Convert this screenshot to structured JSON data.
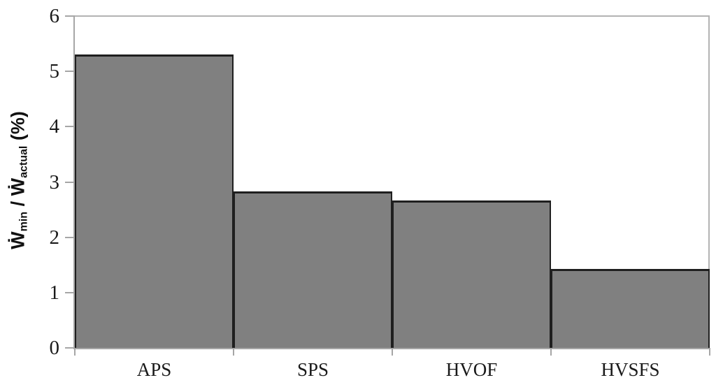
{
  "chart_data": {
    "type": "bar",
    "title": "",
    "xlabel": "",
    "ylabel": "Ẇmin / Ẇactual (%)",
    "ylabel_parts": {
      "w1": "Ẇ",
      "sub1": "min",
      "sep": " / ",
      "w2": "Ẇ",
      "sub2": "actual",
      "unit": " (%)"
    },
    "categories": [
      "APS",
      "SPS",
      "HVOF",
      "HVSFS"
    ],
    "values": [
      5.3,
      2.83,
      2.67,
      1.43
    ],
    "ylim": [
      0,
      6
    ],
    "yticks": [
      0,
      1,
      2,
      3,
      4,
      5,
      6
    ],
    "grid": false,
    "legend": "none",
    "colors": {
      "bar_fill": "#808080",
      "bar_outline": "#1f1f1f",
      "axis": "#a6a6a6",
      "plot_border": "#b3b3b3",
      "text": "#1a1a1a",
      "background": "#ffffff"
    }
  }
}
